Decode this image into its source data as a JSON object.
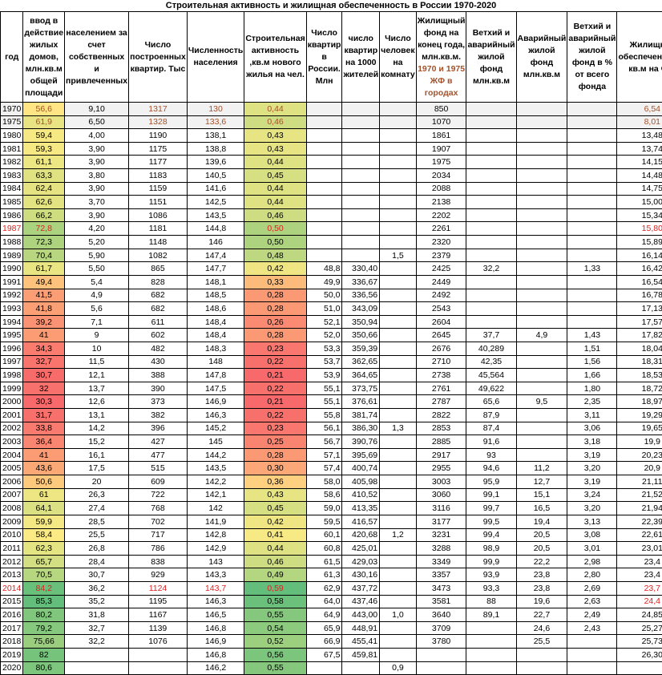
{
  "title": "Строительная активность и жилищная обеспеченность в России 1970-2020",
  "headers": [
    {
      "text": "год"
    },
    {
      "text": "ввод в действие жилых домов, млн.кв.м общей площади"
    },
    {
      "text": "населением за счет собственных и привлеченных"
    },
    {
      "text": "Число построенных квартир. Тыс"
    },
    {
      "text": "Численность населения"
    },
    {
      "text": "Строительная активность ,кв.м нового жилья на чел."
    },
    {
      "text": "Число квартир в России. Млн"
    },
    {
      "text": "число квартир на 1000 жителей"
    },
    {
      "text": "Число человек на комнату"
    },
    {
      "text": "Жилищный фонд на конец года, млн.кв.м.",
      "extra": "1970 и 1975 ЖФ в городах"
    },
    {
      "text": "Ветхий и аварийный жилой фонд млн.кв.м"
    },
    {
      "text": "Аварийный жилой фонд млн.кв.м"
    },
    {
      "text": "Ветхий и аварийный жилой фонд в % от всего фонда"
    },
    {
      "text": "Жилищная обеспеченность кв.м на чел"
    }
  ],
  "colors": {
    "red": "#e02020",
    "brown": "#a5512a",
    "gray_row": "#f2f2f2",
    "scale_low": "#f8696b",
    "scale_mid": "#ffeb84",
    "scale_high": "#63be7b"
  },
  "rows": [
    [
      "1970",
      "56,6",
      "9,10",
      "1317",
      "130",
      "0,44",
      "",
      "",
      "",
      "850",
      "",
      "",
      "",
      "6,54"
    ],
    [
      "1975",
      "61,9",
      "6,50",
      "1328",
      "133,6",
      "0,46",
      "",
      "",
      "",
      "1070",
      "",
      "",
      "",
      "8,01"
    ],
    [
      "1980",
      "59,4",
      "4,00",
      "1190",
      "138,1",
      "0,43",
      "",
      "",
      "",
      "1861",
      "",
      "",
      "",
      "13,48"
    ],
    [
      "1981",
      "59,3",
      "3,90",
      "1175",
      "138,8",
      "0,43",
      "",
      "",
      "",
      "1907",
      "",
      "",
      "",
      "13,74"
    ],
    [
      "1982",
      "61,1",
      "3,90",
      "1177",
      "139,6",
      "0,44",
      "",
      "",
      "",
      "1975",
      "",
      "",
      "",
      "14,15"
    ],
    [
      "1983",
      "63,3",
      "3,80",
      "1183",
      "140,5",
      "0,45",
      "",
      "",
      "",
      "2034",
      "",
      "",
      "",
      "14,48"
    ],
    [
      "1984",
      "62,4",
      "3,90",
      "1159",
      "141,6",
      "0,44",
      "",
      "",
      "",
      "2088",
      "",
      "",
      "",
      "14,75"
    ],
    [
      "1985",
      "62,6",
      "3,70",
      "1151",
      "142,5",
      "0,44",
      "",
      "",
      "",
      "2138",
      "",
      "",
      "",
      "15,00"
    ],
    [
      "1986",
      "66,2",
      "3,90",
      "1086",
      "143,5",
      "0,46",
      "",
      "",
      "",
      "2202",
      "",
      "",
      "",
      "15,34"
    ],
    [
      "1987",
      "72,8",
      "4,20",
      "1181",
      "144,8",
      "0,50",
      "",
      "",
      "",
      "2261",
      "",
      "",
      "",
      "15,80"
    ],
    [
      "1988",
      "72,3",
      "5,20",
      "1148",
      "146",
      "0,50",
      "",
      "",
      "",
      "2320",
      "",
      "",
      "",
      "15,89"
    ],
    [
      "1989",
      "70,4",
      "5,90",
      "1082",
      "147,4",
      "0,48",
      "",
      "",
      "1,5",
      "2379",
      "",
      "",
      "",
      "16,14"
    ],
    [
      "1990",
      "61,7",
      "5,50",
      "865",
      "147,7",
      "0,42",
      "48,8",
      "330,40",
      "",
      "2425",
      "32,2",
      "",
      "1,33",
      "16,42"
    ],
    [
      "1991",
      "49,4",
      "5,4",
      "828",
      "148,1",
      "0,33",
      "49,9",
      "336,67",
      "",
      "2449",
      "",
      "",
      "",
      "16,54"
    ],
    [
      "1992",
      "41,5",
      "4,9",
      "682",
      "148,5",
      "0,28",
      "50,0",
      "336,56",
      "",
      "2492",
      "",
      "",
      "",
      "16,78"
    ],
    [
      "1993",
      "41,8",
      "5,6",
      "682",
      "148,6",
      "0,28",
      "51,0",
      "343,09",
      "",
      "2543",
      "",
      "",
      "",
      "17,13"
    ],
    [
      "1994",
      "39,2",
      "7,1",
      "611",
      "148,4",
      "0,26",
      "52,1",
      "350,94",
      "",
      "2604",
      "",
      "",
      "",
      "17,57"
    ],
    [
      "1995",
      "41",
      "9",
      "602",
      "148,4",
      "0,28",
      "52,0",
      "350,66",
      "",
      "2645",
      "37,7",
      "4,9",
      "1,43",
      "17,82"
    ],
    [
      "1996",
      "34,3",
      "10",
      "482",
      "148,3",
      "0,23",
      "53,3",
      "359,39",
      "",
      "2676",
      "40,289",
      "",
      "1,51",
      "18,04"
    ],
    [
      "1997",
      "32,7",
      "11,5",
      "430",
      "148",
      "0,22",
      "53,7",
      "362,65",
      "",
      "2710",
      "42,35",
      "",
      "1,56",
      "18,31"
    ],
    [
      "1998",
      "30,7",
      "12,1",
      "388",
      "147,8",
      "0,21",
      "53,9",
      "364,65",
      "",
      "2738",
      "45,564",
      "",
      "1,66",
      "18,53"
    ],
    [
      "1999",
      "32",
      "13,7",
      "390",
      "147,5",
      "0,22",
      "55,1",
      "373,75",
      "",
      "2761",
      "49,622",
      "",
      "1,80",
      "18,72"
    ],
    [
      "2000",
      "30,3",
      "12,6",
      "373",
      "146,9",
      "0,21",
      "55,1",
      "376,61",
      "",
      "2787",
      "65,6",
      "9,5",
      "2,35",
      "18,97"
    ],
    [
      "2001",
      "31,7",
      "13,1",
      "382",
      "146,3",
      "0,22",
      "55,8",
      "381,74",
      "",
      "2822",
      "87,9",
      "",
      "3,11",
      "19,29"
    ],
    [
      "2002",
      "33,8",
      "14,2",
      "396",
      "145,2",
      "0,23",
      "56,1",
      "386,30",
      "1,3",
      "2853",
      "87,4",
      "",
      "3,06",
      "19,65"
    ],
    [
      "2003",
      "36,4",
      "15,2",
      "427",
      "145",
      "0,25",
      "56,7",
      "390,76",
      "",
      "2885",
      "91,6",
      "",
      "3,18",
      "19,9"
    ],
    [
      "2004",
      "41",
      "16,1",
      "477",
      "144,2",
      "0,28",
      "57,1",
      "395,69",
      "",
      "2917",
      "93",
      "",
      "3,19",
      "20,23"
    ],
    [
      "2005",
      "43,6",
      "17,5",
      "515",
      "143,5",
      "0,30",
      "57,4",
      "400,74",
      "",
      "2955",
      "94,6",
      "11,2",
      "3,20",
      "20,9"
    ],
    [
      "2006",
      "50,6",
      "20",
      "609",
      "142,2",
      "0,36",
      "58,0",
      "405,98",
      "",
      "3003",
      "95,9",
      "12,7",
      "3,19",
      "21,11"
    ],
    [
      "2007",
      "61",
      "26,3",
      "722",
      "142,1",
      "0,43",
      "58,6",
      "410,52",
      "",
      "3060",
      "99,1",
      "15,1",
      "3,24",
      "21,52"
    ],
    [
      "2008",
      "64,1",
      "27,4",
      "768",
      "142",
      "0,45",
      "59,0",
      "413,35",
      "",
      "3116",
      "99,7",
      "16,5",
      "3,20",
      "21,94"
    ],
    [
      "2009",
      "59,9",
      "28,5",
      "702",
      "141,9",
      "0,42",
      "59,5",
      "416,57",
      "",
      "3177",
      "99,5",
      "19,4",
      "3,13",
      "22,39"
    ],
    [
      "2010",
      "58,4",
      "25,5",
      "717",
      "142,8",
      "0,41",
      "60,1",
      "420,68",
      "1,2",
      "3231",
      "99,4",
      "20,5",
      "3,08",
      "22,61"
    ],
    [
      "2011",
      "62,3",
      "26,8",
      "786",
      "142,9",
      "0,44",
      "60,8",
      "425,01",
      "",
      "3288",
      "98,9",
      "20,5",
      "3,01",
      "23,01"
    ],
    [
      "2012",
      "65,7",
      "28,4",
      "838",
      "143",
      "0,46",
      "61,5",
      "429,03",
      "",
      "3349",
      "99,9",
      "22,2",
      "2,98",
      "23,4"
    ],
    [
      "2013",
      "70,5",
      "30,7",
      "929",
      "143,3",
      "0,49",
      "61,3",
      "430,16",
      "",
      "3357",
      "93,9",
      "23,8",
      "2,80",
      "23,4"
    ],
    [
      "2014",
      "84,2",
      "36,2",
      "1124",
      "143,7",
      "0,59",
      "62,9",
      "437,72",
      "",
      "3473",
      "93,3",
      "23,8",
      "2,69",
      "23,7"
    ],
    [
      "2015",
      "85,3",
      "35,2",
      "1195",
      "146,3",
      "0,58",
      "64,0",
      "437,46",
      "",
      "3581",
      "88",
      "19,6",
      "2,63",
      "24,4"
    ],
    [
      "2016",
      "80,2",
      "31,8",
      "1167",
      "146,5",
      "0,55",
      "64,9",
      "443,00",
      "1,0",
      "3640",
      "89,1",
      "22,7",
      "2,49",
      "24,85"
    ],
    [
      "2017",
      "79,2",
      "32,7",
      "1139",
      "146,8",
      "0,54",
      "65,9",
      "448,91",
      "",
      "3709",
      "",
      "24,6",
      "2,43",
      "25,27"
    ],
    [
      "2018",
      "75,66",
      "32,2",
      "1076",
      "146,9",
      "0,52",
      "66,9",
      "455,41",
      "",
      "3780",
      "",
      "25,5",
      "",
      "25,73"
    ],
    [
      "2019",
      "82",
      "",
      "",
      "146,8",
      "0,56",
      "67,5",
      "459,81",
      "",
      "",
      "",
      "",
      "",
      "26,30"
    ],
    [
      "2020",
      "80,6",
      "",
      "",
      "146,2",
      "0,55",
      "",
      "",
      "0,9",
      "",
      "",
      "",
      "",
      ""
    ]
  ]
}
